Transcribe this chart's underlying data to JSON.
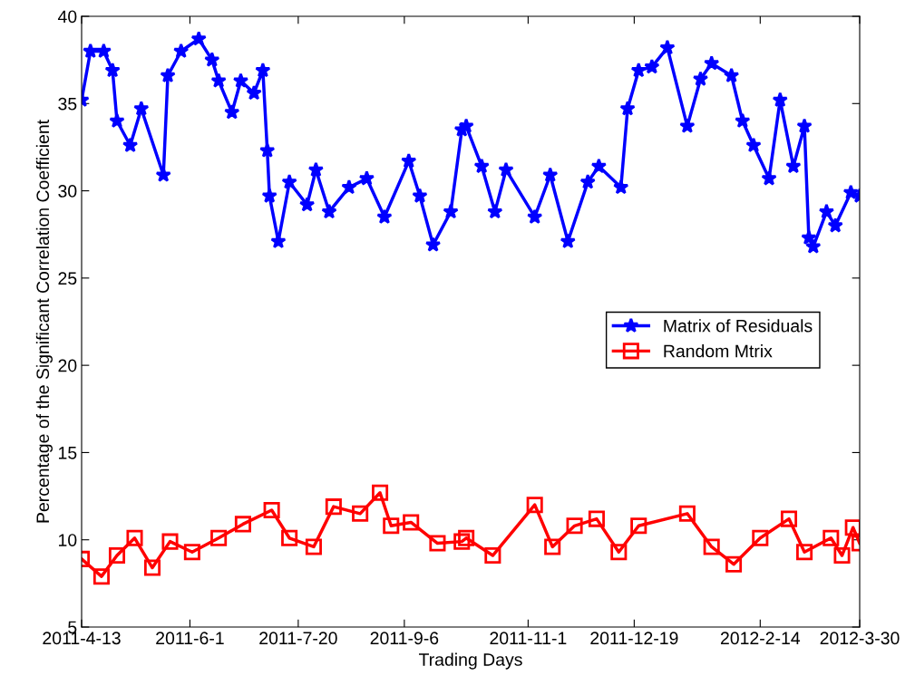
{
  "chart_data": {
    "type": "line",
    "xlabel": "Trading Days",
    "ylabel": "Percentage of the Significant Correlation Coefficient",
    "xlim": [
      "2011-04-13",
      "2012-03-30"
    ],
    "xticks": [
      {
        "value": "2011-04-13",
        "label": "2011-4-13"
      },
      {
        "value": "2011-06-01",
        "label": "2011-6-1"
      },
      {
        "value": "2011-07-20",
        "label": "2011-7-20"
      },
      {
        "value": "2011-09-06",
        "label": "2011-9-6"
      },
      {
        "value": "2011-11-01",
        "label": "2011-11-1"
      },
      {
        "value": "2011-12-19",
        "label": "2011-12-19"
      },
      {
        "value": "2012-02-14",
        "label": "2012-2-14"
      },
      {
        "value": "2012-03-30",
        "label": "2012-3-30"
      }
    ],
    "ylim": [
      5,
      40
    ],
    "yticks": [
      5,
      10,
      15,
      20,
      25,
      30,
      35,
      40
    ],
    "grid": false,
    "legend": "right",
    "series": [
      {
        "name": "Matrix of Residuals",
        "color": "#0000ff",
        "marker": "star",
        "x": [
          "2011-04-13",
          "2011-04-17",
          "2011-04-23",
          "2011-04-27",
          "2011-04-29",
          "2011-05-05",
          "2011-05-10",
          "2011-05-20",
          "2011-05-22",
          "2011-05-28",
          "2011-06-05",
          "2011-06-11",
          "2011-06-14",
          "2011-06-20",
          "2011-06-24",
          "2011-06-30",
          "2011-07-04",
          "2011-07-06",
          "2011-07-07",
          "2011-07-11",
          "2011-07-16",
          "2011-07-24",
          "2011-07-28",
          "2011-08-03",
          "2011-08-12",
          "2011-08-20",
          "2011-08-28",
          "2011-09-08",
          "2011-09-13",
          "2011-09-19",
          "2011-09-27",
          "2011-10-02",
          "2011-10-04",
          "2011-10-11",
          "2011-10-17",
          "2011-10-22",
          "2011-11-04",
          "2011-11-11",
          "2011-11-19",
          "2011-11-28",
          "2011-12-03",
          "2011-12-13",
          "2011-12-16",
          "2011-12-21",
          "2011-12-27",
          "2012-01-03",
          "2012-01-12",
          "2012-01-18",
          "2012-01-23",
          "2012-02-01",
          "2012-02-06",
          "2012-02-11",
          "2012-02-18",
          "2012-02-23",
          "2012-02-29",
          "2012-03-05",
          "2012-03-07",
          "2012-03-09",
          "2012-03-15",
          "2012-03-19",
          "2012-03-26",
          "2012-03-30"
        ],
        "values": [
          35.2,
          38.0,
          38.0,
          36.9,
          34.0,
          32.6,
          34.7,
          30.9,
          36.6,
          38.0,
          38.7,
          37.5,
          36.3,
          34.5,
          36.3,
          35.6,
          36.9,
          32.3,
          29.7,
          27.1,
          30.5,
          29.2,
          31.2,
          28.8,
          30.2,
          30.7,
          28.5,
          31.7,
          29.7,
          26.9,
          28.8,
          33.5,
          33.7,
          31.4,
          28.8,
          31.2,
          28.5,
          30.9,
          27.1,
          30.5,
          31.4,
          30.2,
          34.7,
          36.9,
          37.1,
          38.2,
          33.7,
          36.4,
          37.3,
          36.6,
          34.0,
          32.6,
          30.7,
          35.2,
          31.4,
          33.7,
          27.3,
          26.8,
          28.8,
          28.0,
          29.9,
          29.7
        ]
      },
      {
        "name": "Random Mtrix",
        "color": "#ff0000",
        "marker": "square",
        "x": [
          "2011-04-13",
          "2011-04-22",
          "2011-04-29",
          "2011-05-07",
          "2011-05-15",
          "2011-05-23",
          "2011-06-02",
          "2011-06-14",
          "2011-06-25",
          "2011-07-08",
          "2011-07-16",
          "2011-07-27",
          "2011-08-05",
          "2011-08-17",
          "2011-08-26",
          "2011-08-31",
          "2011-09-09",
          "2011-09-21",
          "2011-10-02",
          "2011-10-04",
          "2011-10-16",
          "2011-11-04",
          "2011-11-12",
          "2011-11-22",
          "2011-12-02",
          "2011-12-12",
          "2011-12-21",
          "2012-01-12",
          "2012-01-23",
          "2012-02-02",
          "2012-02-14",
          "2012-02-27",
          "2012-03-05",
          "2012-03-17",
          "2012-03-22",
          "2012-03-27",
          "2012-03-30"
        ],
        "values": [
          8.9,
          7.9,
          9.1,
          10.1,
          8.4,
          9.9,
          9.3,
          10.1,
          10.9,
          11.7,
          10.1,
          9.6,
          11.9,
          11.5,
          12.7,
          10.8,
          11.0,
          9.8,
          9.9,
          10.1,
          9.1,
          12.0,
          9.6,
          10.8,
          11.2,
          9.3,
          10.8,
          11.5,
          9.6,
          8.6,
          10.1,
          11.2,
          9.3,
          10.1,
          9.1,
          10.7,
          9.8
        ]
      }
    ]
  }
}
